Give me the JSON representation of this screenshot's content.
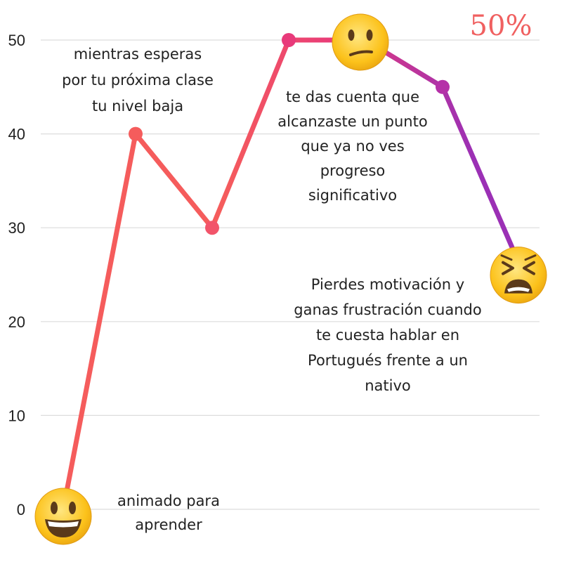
{
  "chart_data": {
    "type": "line",
    "x": [
      1,
      2,
      3,
      4,
      5,
      6,
      7
    ],
    "values": [
      0,
      40,
      30,
      50,
      50,
      45,
      26
    ],
    "ylim": [
      0,
      50
    ],
    "yticks": [
      "0",
      "10",
      "20",
      "30",
      "40",
      "50"
    ],
    "grid": true,
    "legend": "none",
    "gradient_colors": [
      "#f55c5c",
      "#e83a7a",
      "#9b30b5"
    ],
    "badge": "50%",
    "badge_color": "#f06060",
    "markers": [
      {
        "index": 0,
        "icon": "grinning-face-icon"
      },
      {
        "index": 4,
        "icon": "confused-face-icon"
      },
      {
        "index": 6,
        "icon": "tired-face-icon"
      }
    ],
    "annotations": [
      {
        "lines": [
          "animado para",
          "aprender"
        ]
      },
      {
        "lines": [
          "mientras esperas",
          "por tu próxima clase",
          "tu nivel baja"
        ]
      },
      {
        "lines": [
          "te das cuenta que",
          "alcanzaste un punto",
          "que ya no ves",
          "progreso",
          "significativo"
        ]
      },
      {
        "lines": [
          "Pierdes motivación y",
          "ganas frustración cuando",
          "te cuesta hablar en",
          "Portugués frente a un",
          "nativo"
        ]
      }
    ]
  }
}
